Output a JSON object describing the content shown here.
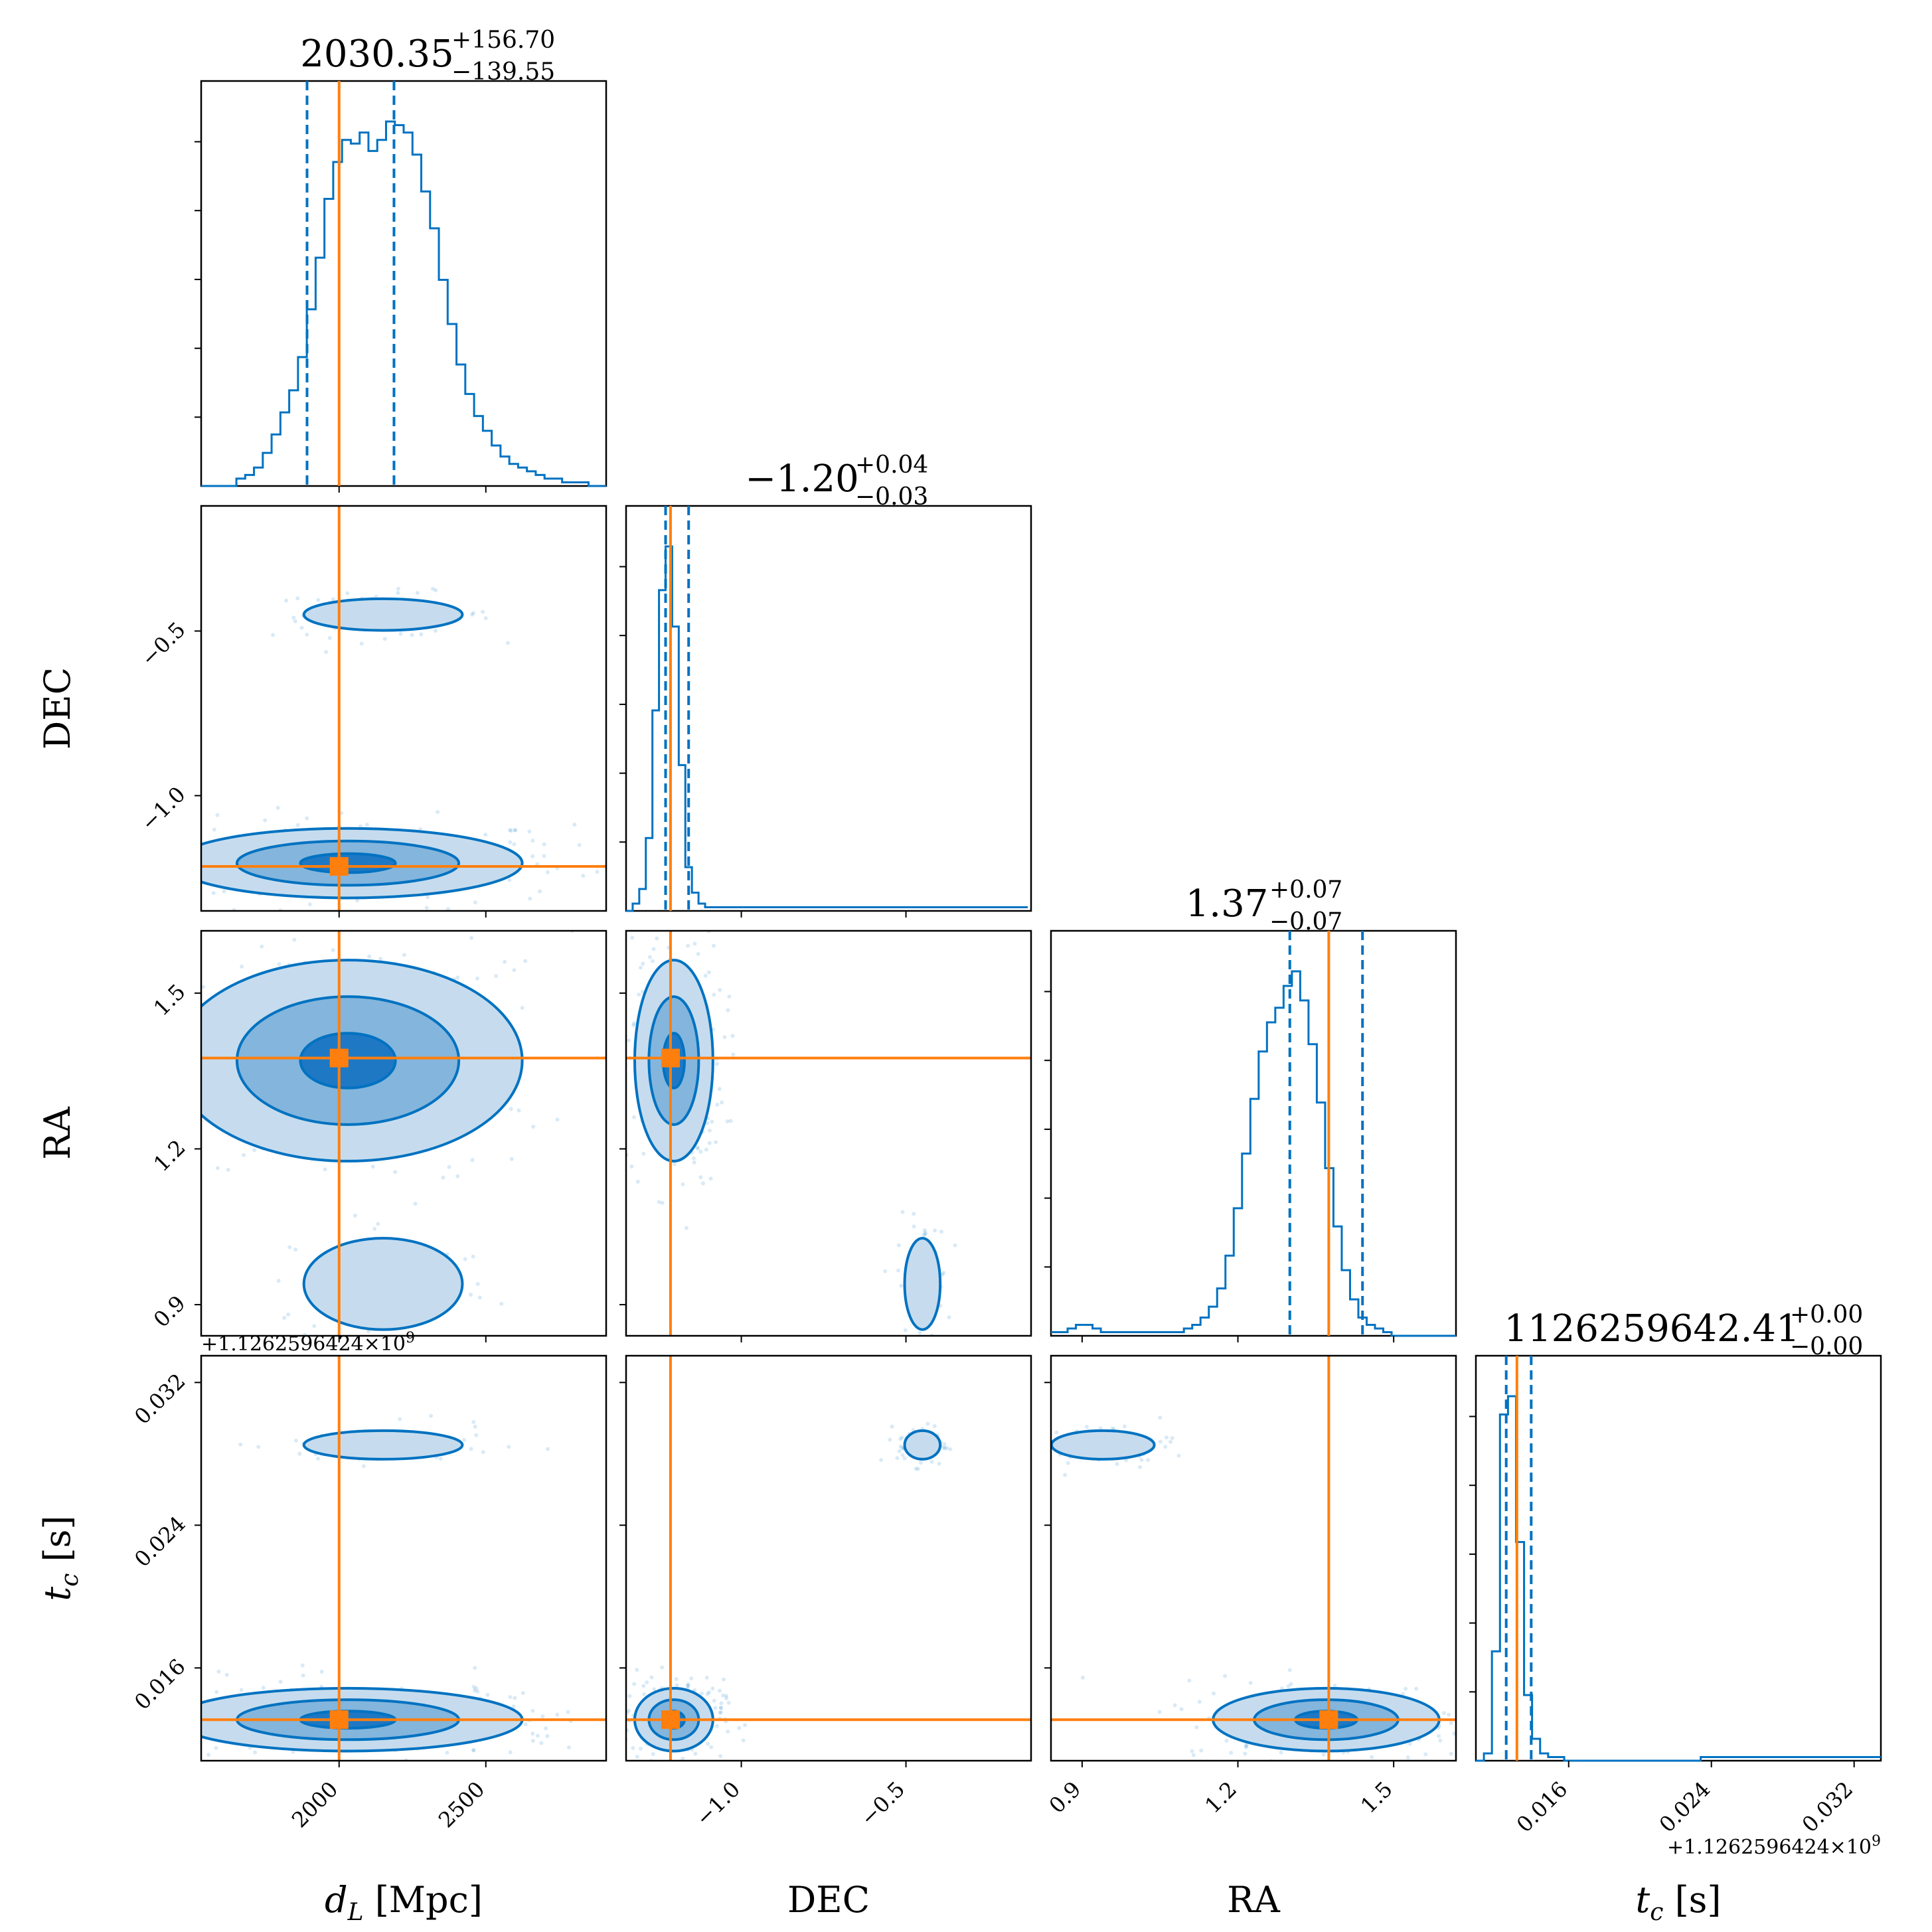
{
  "colors": {
    "posterior": "#0072c1",
    "truth": "#ff7f0e",
    "fill_levels": [
      "#c6dcee",
      "#84b5dc",
      "#1f78c4"
    ]
  },
  "chart_data": {
    "type": "corner",
    "parameters": [
      {
        "key": "dL",
        "label_main": "d",
        "label_sub": "L",
        "label_unit": " [Mpc]",
        "range": [
          1530,
          2910
        ],
        "ticks": [
          2000,
          2500
        ],
        "tick_labels": [
          "2000",
          "2500"
        ],
        "median": 2030.35,
        "upper": "+156.70",
        "lower": "−139.55",
        "title_main": "2030.35",
        "q_low": 1890.8,
        "q_high": 2187.05,
        "truth": 2000,
        "sd": 150
      },
      {
        "key": "DEC",
        "label_main": "DEC",
        "label_sub": "",
        "label_unit": "",
        "range": [
          -1.35,
          -0.12
        ],
        "ticks": [
          -1.0,
          -0.5
        ],
        "tick_labels": [
          "−1.0",
          "−0.5"
        ],
        "median": -1.2,
        "upper": "+0.04",
        "lower": "−0.03",
        "title_main": "−1.20",
        "q_low": -1.23,
        "q_high": -1.16,
        "truth": -1.215,
        "sd": 0.03
      },
      {
        "key": "RA",
        "label_main": "RA",
        "label_sub": "",
        "label_unit": "",
        "range": [
          0.84,
          1.62
        ],
        "ticks": [
          0.9,
          1.2,
          1.5
        ],
        "tick_labels": [
          "0.9",
          "1.2",
          "1.5"
        ],
        "median": 1.37,
        "upper": "+0.07",
        "lower": "−0.07",
        "title_main": "1.37",
        "q_low": 1.3,
        "q_high": 1.44,
        "truth": 1.375,
        "sd": 0.055
      },
      {
        "key": "tc",
        "label_main": "t",
        "label_sub": "c",
        "label_unit": " [s]",
        "range": [
          0.0108,
          0.0335
        ],
        "ticks": [
          0.016,
          0.024,
          0.032
        ],
        "tick_labels": [
          "0.016",
          "0.024",
          "0.032"
        ],
        "median": 1126259642.41,
        "upper": "+0.00",
        "lower": "−0.00",
        "title_main": "1126259642.41",
        "q_low": 0.0125,
        "q_high": 0.0139,
        "truth": 0.0131,
        "sd": 0.0005,
        "offset_label": "+1.1262596424×10",
        "offset_exp": "9"
      }
    ],
    "histograms": {
      "dL": {
        "bins_edges_start": 1530,
        "bin_width": 30,
        "counts": [
          0,
          0,
          0,
          0,
          2,
          3,
          5,
          9,
          14,
          20,
          26,
          35,
          48,
          62,
          78,
          88,
          94,
          93,
          96,
          91,
          94,
          99,
          98,
          96,
          90,
          80,
          70,
          56,
          44,
          33,
          25,
          19,
          15,
          11,
          8,
          6,
          5,
          4,
          3,
          2,
          2,
          1,
          1,
          1,
          0,
          0
        ]
      },
      "DEC": {
        "bins_edges_start": -1.35,
        "bin_width": 0.02,
        "counts": [
          0,
          2,
          6,
          20,
          55,
          88,
          100,
          78,
          40,
          12,
          5,
          2,
          1,
          1,
          1,
          1,
          1,
          1,
          1,
          1,
          1,
          1,
          1,
          1,
          1,
          1,
          1,
          1,
          1,
          1,
          1,
          1,
          1,
          1,
          1,
          1,
          1,
          1,
          1,
          1,
          1,
          1,
          1,
          1,
          1,
          1,
          1,
          1,
          1,
          1,
          1,
          1,
          1,
          1,
          1,
          1,
          1,
          1,
          1,
          1,
          1
        ]
      },
      "RA": {
        "bins_edges_start": 0.84,
        "bin_width": 0.016,
        "counts": [
          1,
          1,
          2,
          3,
          3,
          2,
          1,
          1,
          1,
          1,
          1,
          1,
          1,
          1,
          1,
          1,
          2,
          3,
          5,
          8,
          13,
          22,
          35,
          50,
          65,
          78,
          86,
          90,
          96,
          100,
          92,
          80,
          64,
          46,
          30,
          18,
          10,
          5,
          3,
          2,
          1,
          0,
          0,
          0,
          0,
          0,
          0,
          0,
          0
        ]
      },
      "tc": {
        "bins_edges_start": 0.0108,
        "bin_width": 0.00045,
        "counts": [
          0,
          2,
          30,
          95,
          100,
          60,
          18,
          6,
          2,
          1,
          1,
          0,
          0,
          0,
          0,
          0,
          0,
          0,
          0,
          0,
          0,
          0,
          0,
          0,
          0,
          0,
          0,
          0,
          1,
          1,
          1,
          1,
          1,
          1,
          1,
          1,
          1,
          1,
          1,
          1,
          1,
          1,
          1,
          1,
          1,
          1,
          1,
          1,
          1,
          1,
          1
        ]
      }
    },
    "modes": {
      "dL": [
        {
          "mu": 2030,
          "w": 0.85
        },
        {
          "mu": 2150,
          "w": 0.15
        }
      ],
      "DEC": [
        {
          "mu": -1.205,
          "w": 0.85
        },
        {
          "mu": -0.45,
          "w": 0.15
        }
      ],
      "RA": [
        {
          "mu": 1.37,
          "w": 0.85
        },
        {
          "mu": 0.94,
          "w": 0.15
        }
      ],
      "tc": [
        {
          "mu": 0.0131,
          "w": 0.85
        },
        {
          "mu": 0.0285,
          "w": 0.15
        }
      ]
    },
    "grid": false
  }
}
